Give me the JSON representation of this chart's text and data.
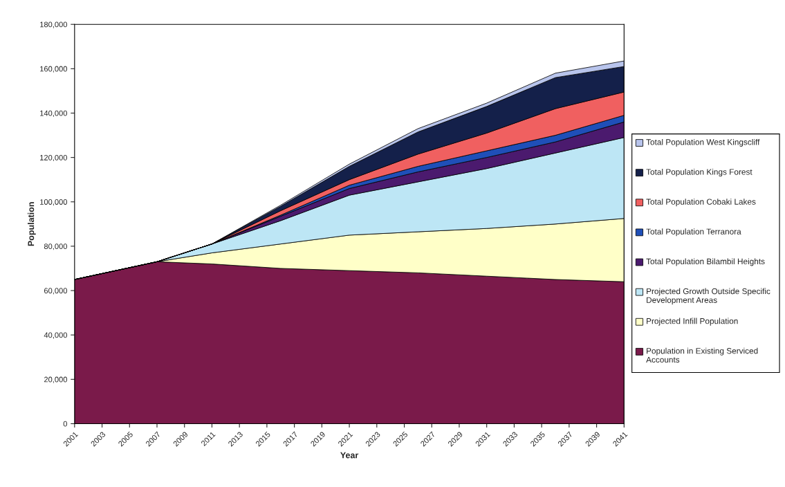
{
  "chart_data": {
    "type": "area",
    "stacked": true,
    "xlabel": "Year",
    "ylabel": "Population",
    "x": [
      2001,
      2007,
      2011,
      2016,
      2021,
      2026,
      2031,
      2036,
      2041
    ],
    "series": [
      {
        "name": "Population in Existing Serviced Accounts",
        "color": "#7a1a4a",
        "values": [
          65000,
          73000,
          72000,
          70000,
          69000,
          68000,
          66500,
          65000,
          64000
        ]
      },
      {
        "name": "Projected Infill Population",
        "color": "#ffffc8",
        "values": [
          0,
          0,
          5000,
          11000,
          16000,
          18500,
          21500,
          25000,
          28500
        ]
      },
      {
        "name": "Projected Growth Outside Specific Development Areas",
        "color": "#bde6f5",
        "values": [
          0,
          0,
          4000,
          10500,
          18000,
          22500,
          27000,
          32000,
          36500
        ]
      },
      {
        "name": "Total Population Bilambil Heights",
        "color": "#4b1a6e",
        "values": [
          0,
          0,
          0,
          2000,
          3000,
          4500,
          5000,
          5000,
          7000
        ]
      },
      {
        "name": "Total Population Terranora",
        "color": "#1f4fb8",
        "values": [
          0,
          0,
          0,
          500,
          1500,
          2500,
          3000,
          3000,
          3000
        ]
      },
      {
        "name": "Total Population Cobaki Lakes",
        "color": "#f06060",
        "values": [
          0,
          0,
          0,
          2000,
          2500,
          5500,
          8000,
          12000,
          10500
        ]
      },
      {
        "name": "Total Population Kings Forest",
        "color": "#14204a",
        "values": [
          0,
          0,
          0,
          2000,
          6000,
          10000,
          12000,
          14000,
          11500
        ]
      },
      {
        "name": "Total Population West Kingscliff",
        "color": "#b8c4ec",
        "values": [
          0,
          0,
          0,
          500,
          1000,
          1500,
          1500,
          2000,
          2500
        ]
      }
    ],
    "xlim": [
      2001,
      2041
    ],
    "xticks": [
      2001,
      2003,
      2005,
      2007,
      2009,
      2011,
      2013,
      2015,
      2017,
      2019,
      2021,
      2023,
      2025,
      2027,
      2029,
      2031,
      2033,
      2035,
      2037,
      2039,
      2041
    ],
    "ylim": [
      0,
      180000
    ],
    "yticks": [
      {
        "value": 0,
        "label": "0"
      },
      {
        "value": 20000,
        "label": "20,000"
      },
      {
        "value": 40000,
        "label": "40,000"
      },
      {
        "value": 60000,
        "label": "60,000"
      },
      {
        "value": 80000,
        "label": "80,000"
      },
      {
        "value": 100000,
        "label": "100,000"
      },
      {
        "value": 120000,
        "label": "120,000"
      },
      {
        "value": 140000,
        "label": "140,000"
      },
      {
        "value": 160000,
        "label": "160,000"
      },
      {
        "value": 180000,
        "label": "180,000"
      }
    ],
    "grid": false,
    "legend": "right"
  }
}
